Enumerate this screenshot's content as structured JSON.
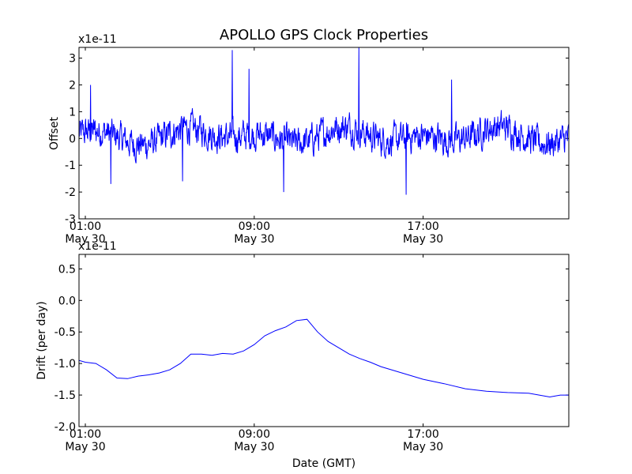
{
  "chart_data": [
    {
      "type": "line",
      "title": "APOLLO GPS Clock Properties",
      "xlabel": "",
      "ylabel": "Offset",
      "y_multiplier": "x1e-11",
      "ylim": [
        -3,
        3.4
      ],
      "yticks": [
        -3,
        -2,
        -1,
        0,
        1,
        2,
        3
      ],
      "ytick_labels": [
        "-3",
        "-2",
        "-1",
        "0",
        "1",
        "2",
        "3"
      ],
      "xlim_hours": [
        0.7,
        23.9
      ],
      "xticks": [
        {
          "hour": 1,
          "line1": "01:00",
          "line2": "May 30"
        },
        {
          "hour": 9,
          "line1": "09:00",
          "line2": "May 30"
        },
        {
          "hour": 17,
          "line1": "17:00",
          "line2": "May 30"
        }
      ],
      "series": [
        {
          "name": "Offset",
          "color": "#0000ff",
          "shape": "noisy",
          "mean": 0.1,
          "noise": 0.45
        }
      ],
      "spikes": [
        {
          "hour": 7.95,
          "value": 3.3
        },
        {
          "hour": 8.75,
          "value": 2.6
        },
        {
          "hour": 13.95,
          "value": 3.4
        },
        {
          "hour": 18.35,
          "value": 2.2
        },
        {
          "hour": 1.25,
          "value": 2.0
        },
        {
          "hour": 10.4,
          "value": -2.0
        },
        {
          "hour": 16.2,
          "value": -2.1
        },
        {
          "hour": 2.2,
          "value": -1.7
        },
        {
          "hour": 5.6,
          "value": -1.6
        }
      ]
    },
    {
      "type": "line",
      "title": "",
      "xlabel": "Date (GMT)",
      "ylabel": "Drift (per day)",
      "y_multiplier": "x1e-11",
      "ylim": [
        -2.0,
        0.73
      ],
      "yticks": [
        -2.0,
        -1.5,
        -1.0,
        -0.5,
        0.0,
        0.5
      ],
      "ytick_labels": [
        "-2.0",
        "-1.5",
        "-1.0",
        "-0.5",
        "0.0",
        "0.5"
      ],
      "xlim_hours": [
        0.7,
        23.9
      ],
      "xticks": [
        {
          "hour": 1,
          "line1": "01:00",
          "line2": "May 30"
        },
        {
          "hour": 9,
          "line1": "09:00",
          "line2": "May 30"
        },
        {
          "hour": 17,
          "line1": "17:00",
          "line2": "May 30"
        }
      ],
      "series": [
        {
          "name": "Drift",
          "color": "#0000ff",
          "x": [
            0.7,
            1.0,
            1.5,
            2.0,
            2.5,
            3.0,
            3.5,
            4.0,
            4.5,
            5.0,
            5.5,
            6.0,
            6.5,
            7.0,
            7.5,
            8.0,
            8.5,
            9.0,
            9.5,
            10.0,
            10.5,
            11.0,
            11.5,
            12.0,
            12.5,
            13.0,
            13.5,
            14.0,
            14.5,
            15.0,
            16.0,
            17.0,
            18.0,
            19.0,
            20.0,
            21.0,
            22.0,
            22.5,
            23.0,
            23.5,
            23.9
          ],
          "y": [
            -0.95,
            -0.98,
            -1.0,
            -1.1,
            -1.23,
            -1.24,
            -1.2,
            -1.18,
            -1.15,
            -1.1,
            -1.0,
            -0.85,
            -0.85,
            -0.87,
            -0.84,
            -0.85,
            -0.8,
            -0.7,
            -0.56,
            -0.48,
            -0.42,
            -0.32,
            -0.3,
            -0.5,
            -0.65,
            -0.75,
            -0.85,
            -0.92,
            -0.98,
            -1.05,
            -1.15,
            -1.25,
            -1.32,
            -1.4,
            -1.44,
            -1.46,
            -1.47,
            -1.5,
            -1.53,
            -1.5,
            -1.5
          ]
        }
      ]
    }
  ]
}
